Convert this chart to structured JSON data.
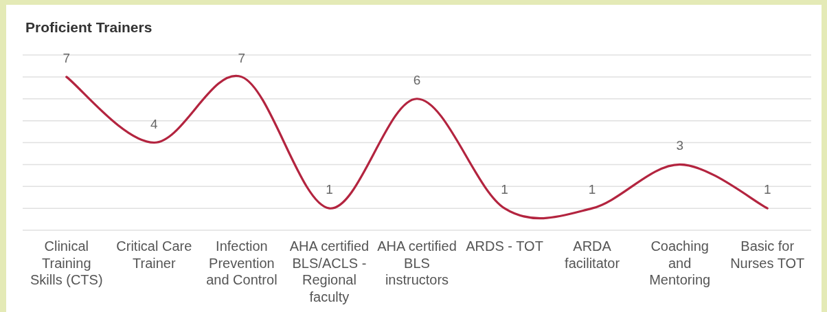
{
  "chart_data": {
    "type": "line",
    "title": "Proficient Trainers",
    "categories": [
      "Clinical Training Skills (CTS)",
      "Critical Care Trainer",
      "Infection Prevention and Control",
      "AHA certified BLS/ACLS - Regional faculty",
      "AHA certified BLS instructors",
      "ARDS - TOT",
      "ARDA facilitator",
      "Coaching and Mentoring",
      "Basic for Nurses TOT"
    ],
    "values": [
      7,
      4,
      7,
      1,
      6,
      1,
      1,
      3,
      1
    ],
    "color": "#b3243f",
    "ylim": [
      0,
      8
    ],
    "yticks": [
      {
        "value": 0,
        "label": null
      },
      {
        "value": 1,
        "label": null
      },
      {
        "value": 2,
        "label": null
      },
      {
        "value": 3,
        "label": null
      },
      {
        "value": 4,
        "label": null
      },
      {
        "value": 5,
        "label": null
      },
      {
        "value": 6,
        "label": null
      },
      {
        "value": 7,
        "label": null
      },
      {
        "value": 8,
        "label": null
      }
    ],
    "tick_labels": "x",
    "grid": "y",
    "data_labels": true
  }
}
